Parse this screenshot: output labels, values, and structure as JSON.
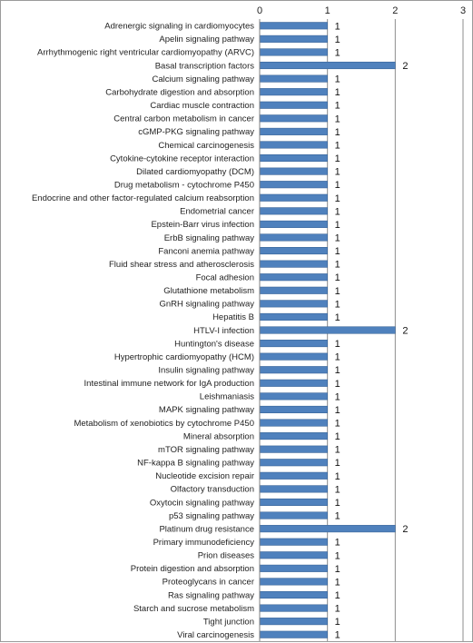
{
  "chart_data": {
    "type": "bar",
    "orientation": "horizontal",
    "title": "",
    "xlabel": "",
    "ylabel": "",
    "xlim": [
      0,
      3
    ],
    "x_ticks": [
      "0",
      "1",
      "2",
      "3"
    ],
    "x_axis_position": "top",
    "grid": true,
    "legend": "none",
    "bar_color": "#4f81bd",
    "categories": [
      "Adrenergic signaling in cardiomyocytes",
      "Apelin signaling pathway",
      "Arrhythmogenic right ventricular cardiomyopathy (ARVC)",
      "Basal transcription factors",
      "Calcium signaling pathway",
      "Carbohydrate digestion and absorption",
      "Cardiac muscle contraction",
      "Central carbon metabolism in cancer",
      "cGMP-PKG signaling pathway",
      "Chemical carcinogenesis",
      "Cytokine-cytokine receptor interaction",
      "Dilated cardiomyopathy (DCM)",
      "Drug metabolism - cytochrome P450",
      "Endocrine and other factor-regulated calcium reabsorption",
      "Endometrial cancer",
      "Epstein-Barr virus infection",
      "ErbB signaling pathway",
      "Fanconi anemia pathway",
      "Fluid shear stress and atherosclerosis",
      "Focal adhesion",
      "Glutathione metabolism",
      "GnRH signaling pathway",
      "Hepatitis B",
      "HTLV-I infection",
      "Huntington's disease",
      "Hypertrophic cardiomyopathy (HCM)",
      "Insulin signaling pathway",
      "Intestinal immune network for IgA production",
      "Leishmaniasis",
      "MAPK signaling pathway",
      "Metabolism of xenobiotics by cytochrome P450",
      "Mineral absorption",
      "mTOR signaling pathway",
      "NF-kappa B signaling pathway",
      "Nucleotide excision repair",
      "Olfactory transduction",
      "Oxytocin signaling pathway",
      "p53 signaling pathway",
      "Platinum drug resistance",
      "Primary immunodeficiency",
      "Prion diseases",
      "Protein digestion and absorption",
      "Proteoglycans in cancer",
      "Ras signaling pathway",
      "Starch and sucrose metabolism",
      "Tight junction",
      "Viral carcinogenesis"
    ],
    "values": [
      1,
      1,
      1,
      2,
      1,
      1,
      1,
      1,
      1,
      1,
      1,
      1,
      1,
      1,
      1,
      1,
      1,
      1,
      1,
      1,
      1,
      1,
      1,
      2,
      1,
      1,
      1,
      1,
      1,
      1,
      1,
      1,
      1,
      1,
      1,
      1,
      1,
      1,
      2,
      1,
      1,
      1,
      1,
      1,
      1,
      1,
      1
    ]
  }
}
